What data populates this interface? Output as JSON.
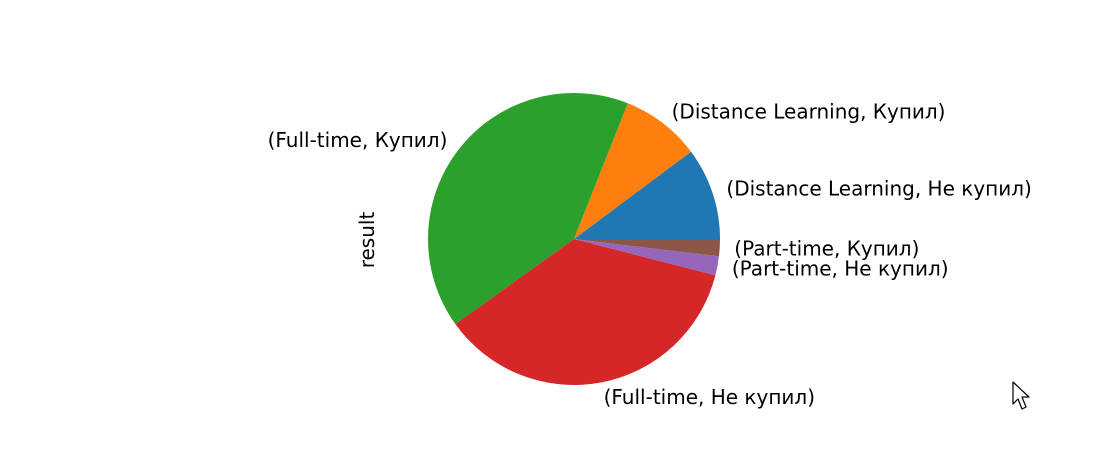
{
  "chart_data": {
    "type": "pie",
    "ylabel": "result",
    "start_angle_deg": 0,
    "direction": "counterclockwise",
    "slices": [
      {
        "label": "(Distance Learning, Не купил)",
        "value": 10.2,
        "color": "#1f77b4"
      },
      {
        "label": "(Distance Learning, Купил)",
        "value": 8.8,
        "color": "#ff7f0e"
      },
      {
        "label": "(Full-time, Купил)",
        "value": 40.9,
        "color": "#2ca02c"
      },
      {
        "label": "(Full-time, Не купил)",
        "value": 36.1,
        "color": "#d62728"
      },
      {
        "label": "(Part-time, Не купил)",
        "value": 2.1,
        "color": "#9467bd"
      },
      {
        "label": "(Part-time, Купил)",
        "value": 1.9,
        "color": "#8c564b"
      }
    ]
  },
  "cursor": {
    "icon": "arrow-cursor-icon"
  }
}
